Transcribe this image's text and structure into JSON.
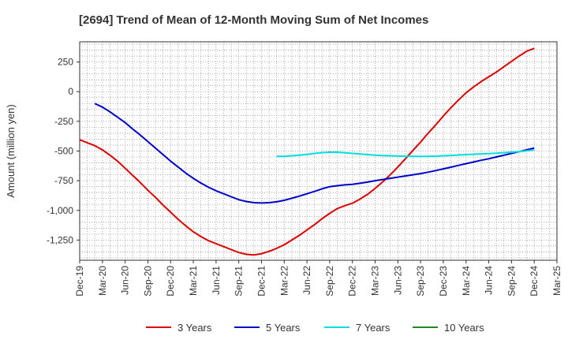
{
  "chart_data": {
    "type": "line",
    "title": "[2694]  Trend of Mean of 12-Month Moving Sum of Net Incomes",
    "xlabel": "",
    "ylabel": "Amount (million yen)",
    "ylim": [
      -1420,
      420
    ],
    "yticks": [
      250,
      0,
      -250,
      -500,
      -750,
      -1000,
      -1250
    ],
    "ytick_labels": [
      "250",
      "0",
      "-250",
      "-500",
      "-750",
      "-1,000",
      "-1,250"
    ],
    "xlim": [
      "2019-12",
      "2025-03"
    ],
    "xtick_labels": [
      "Dec-19",
      "Mar-20",
      "Jun-20",
      "Sep-20",
      "Dec-20",
      "Mar-21",
      "Jun-21",
      "Sep-21",
      "Dec-21",
      "Mar-22",
      "Jun-22",
      "Sep-22",
      "Dec-22",
      "Mar-23",
      "Jun-23",
      "Sep-23",
      "Dec-23",
      "Mar-24",
      "Jun-24",
      "Sep-24",
      "Dec-24",
      "Mar-25"
    ],
    "grid": true,
    "legend_position": "bottom",
    "series": [
      {
        "name": "3 Years",
        "color": "#dd0000",
        "points": [
          [
            "2019-12",
            -405
          ],
          [
            "2020-01",
            -430
          ],
          [
            "2020-02",
            -455
          ],
          [
            "2020-03",
            -490
          ],
          [
            "2020-04",
            -535
          ],
          [
            "2020-05",
            -585
          ],
          [
            "2020-06",
            -645
          ],
          [
            "2020-07",
            -705
          ],
          [
            "2020-08",
            -765
          ],
          [
            "2020-09",
            -830
          ],
          [
            "2020-10",
            -890
          ],
          [
            "2020-11",
            -955
          ],
          [
            "2020-12",
            -1015
          ],
          [
            "2021-01",
            -1075
          ],
          [
            "2021-02",
            -1130
          ],
          [
            "2021-03",
            -1180
          ],
          [
            "2021-04",
            -1220
          ],
          [
            "2021-05",
            -1255
          ],
          [
            "2021-06",
            -1280
          ],
          [
            "2021-07",
            -1305
          ],
          [
            "2021-08",
            -1330
          ],
          [
            "2021-09",
            -1355
          ],
          [
            "2021-10",
            -1370
          ],
          [
            "2021-11",
            -1375
          ],
          [
            "2021-12",
            -1365
          ],
          [
            "2022-01",
            -1345
          ],
          [
            "2022-02",
            -1320
          ],
          [
            "2022-03",
            -1290
          ],
          [
            "2022-04",
            -1250
          ],
          [
            "2022-05",
            -1210
          ],
          [
            "2022-06",
            -1165
          ],
          [
            "2022-07",
            -1120
          ],
          [
            "2022-08",
            -1070
          ],
          [
            "2022-09",
            -1025
          ],
          [
            "2022-10",
            -985
          ],
          [
            "2022-11",
            -960
          ],
          [
            "2022-12",
            -940
          ],
          [
            "2023-01",
            -905
          ],
          [
            "2023-02",
            -865
          ],
          [
            "2023-03",
            -815
          ],
          [
            "2023-04",
            -760
          ],
          [
            "2023-05",
            -700
          ],
          [
            "2023-06",
            -635
          ],
          [
            "2023-07",
            -565
          ],
          [
            "2023-08",
            -495
          ],
          [
            "2023-09",
            -425
          ],
          [
            "2023-10",
            -350
          ],
          [
            "2023-11",
            -280
          ],
          [
            "2023-12",
            -205
          ],
          [
            "2024-01",
            -135
          ],
          [
            "2024-02",
            -70
          ],
          [
            "2024-03",
            -10
          ],
          [
            "2024-04",
            40
          ],
          [
            "2024-05",
            85
          ],
          [
            "2024-06",
            125
          ],
          [
            "2024-07",
            165
          ],
          [
            "2024-08",
            210
          ],
          [
            "2024-09",
            255
          ],
          [
            "2024-10",
            300
          ],
          [
            "2024-11",
            340
          ],
          [
            "2024-12",
            365
          ]
        ]
      },
      {
        "name": "5 Years",
        "color": "#0000cc",
        "points": [
          [
            "2020-02",
            -100
          ],
          [
            "2020-03",
            -130
          ],
          [
            "2020-04",
            -170
          ],
          [
            "2020-05",
            -215
          ],
          [
            "2020-06",
            -260
          ],
          [
            "2020-07",
            -315
          ],
          [
            "2020-08",
            -365
          ],
          [
            "2020-09",
            -420
          ],
          [
            "2020-10",
            -475
          ],
          [
            "2020-11",
            -530
          ],
          [
            "2020-12",
            -585
          ],
          [
            "2021-01",
            -635
          ],
          [
            "2021-02",
            -685
          ],
          [
            "2021-03",
            -730
          ],
          [
            "2021-04",
            -770
          ],
          [
            "2021-05",
            -805
          ],
          [
            "2021-06",
            -835
          ],
          [
            "2021-07",
            -860
          ],
          [
            "2021-08",
            -885
          ],
          [
            "2021-09",
            -910
          ],
          [
            "2021-10",
            -925
          ],
          [
            "2021-11",
            -935
          ],
          [
            "2021-12",
            -938
          ],
          [
            "2022-01",
            -935
          ],
          [
            "2022-02",
            -928
          ],
          [
            "2022-03",
            -915
          ],
          [
            "2022-04",
            -898
          ],
          [
            "2022-05",
            -880
          ],
          [
            "2022-06",
            -860
          ],
          [
            "2022-07",
            -840
          ],
          [
            "2022-08",
            -818
          ],
          [
            "2022-09",
            -800
          ],
          [
            "2022-10",
            -792
          ],
          [
            "2022-11",
            -785
          ],
          [
            "2022-12",
            -780
          ],
          [
            "2023-01",
            -772
          ],
          [
            "2023-02",
            -762
          ],
          [
            "2023-03",
            -750
          ],
          [
            "2023-04",
            -740
          ],
          [
            "2023-05",
            -730
          ],
          [
            "2023-06",
            -720
          ],
          [
            "2023-07",
            -710
          ],
          [
            "2023-08",
            -700
          ],
          [
            "2023-09",
            -690
          ],
          [
            "2023-10",
            -678
          ],
          [
            "2023-11",
            -665
          ],
          [
            "2023-12",
            -650
          ],
          [
            "2024-01",
            -636
          ],
          [
            "2024-02",
            -621
          ],
          [
            "2024-03",
            -606
          ],
          [
            "2024-04",
            -592
          ],
          [
            "2024-05",
            -578
          ],
          [
            "2024-06",
            -565
          ],
          [
            "2024-07",
            -550
          ],
          [
            "2024-08",
            -535
          ],
          [
            "2024-09",
            -520
          ],
          [
            "2024-10",
            -505
          ],
          [
            "2024-11",
            -490
          ],
          [
            "2024-12",
            -475
          ]
        ]
      },
      {
        "name": "7 Years",
        "color": "#00dddd",
        "points": [
          [
            "2022-02",
            -545
          ],
          [
            "2022-03",
            -545
          ],
          [
            "2022-04",
            -540
          ],
          [
            "2022-05",
            -535
          ],
          [
            "2022-06",
            -528
          ],
          [
            "2022-07",
            -520
          ],
          [
            "2022-08",
            -514
          ],
          [
            "2022-09",
            -510
          ],
          [
            "2022-10",
            -510
          ],
          [
            "2022-11",
            -515
          ],
          [
            "2022-12",
            -520
          ],
          [
            "2023-01",
            -525
          ],
          [
            "2023-02",
            -530
          ],
          [
            "2023-03",
            -535
          ],
          [
            "2023-04",
            -538
          ],
          [
            "2023-05",
            -540
          ],
          [
            "2023-06",
            -542
          ],
          [
            "2023-07",
            -544
          ],
          [
            "2023-08",
            -545
          ],
          [
            "2023-09",
            -546
          ],
          [
            "2023-10",
            -545
          ],
          [
            "2023-11",
            -543
          ],
          [
            "2023-12",
            -540
          ],
          [
            "2024-01",
            -537
          ],
          [
            "2024-02",
            -533
          ],
          [
            "2024-03",
            -530
          ],
          [
            "2024-04",
            -527
          ],
          [
            "2024-05",
            -524
          ],
          [
            "2024-06",
            -521
          ],
          [
            "2024-07",
            -518
          ],
          [
            "2024-08",
            -514
          ],
          [
            "2024-09",
            -510
          ],
          [
            "2024-10",
            -505
          ],
          [
            "2024-11",
            -498
          ],
          [
            "2024-12",
            -490
          ]
        ]
      },
      {
        "name": "10 Years",
        "color": "#228822",
        "points": []
      }
    ]
  }
}
